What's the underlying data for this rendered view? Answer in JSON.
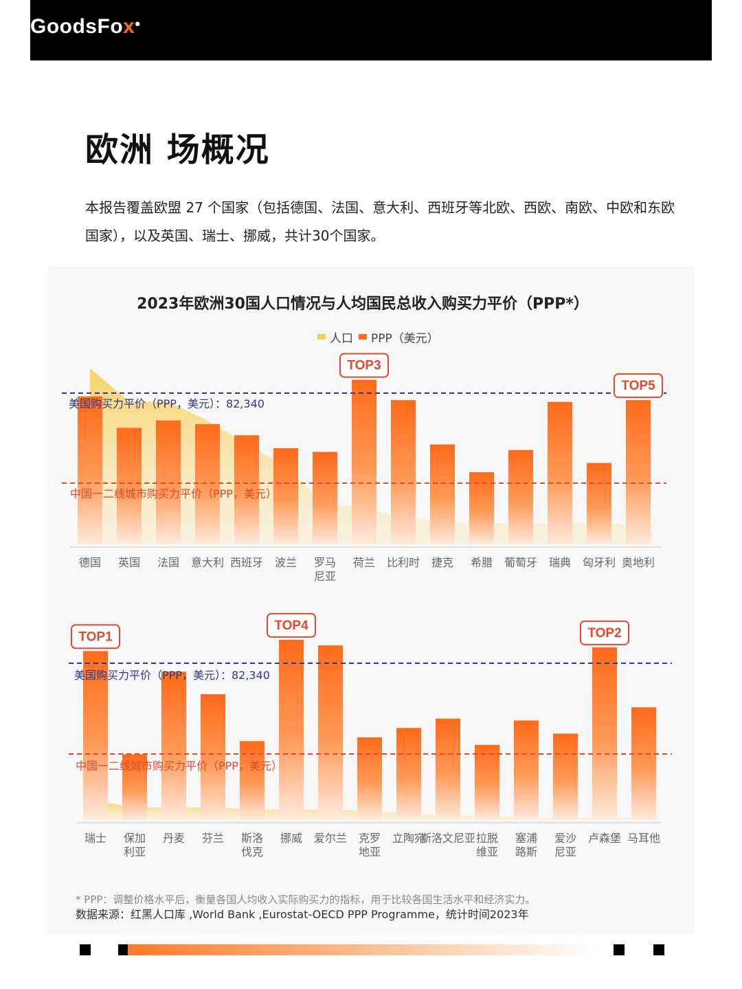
{
  "header": {
    "logo_main": "GoodsFo",
    "logo_x": "x",
    "logo_mark": "•"
  },
  "page_title": "欧洲   场概况",
  "intro": "本报告覆盖欧盟 27 个国家（包括德国、法国、意大利、西班牙等北欧、西欧、南欧、中欧和东欧国家），以及英国、瑞士、挪威，共计30个国家。",
  "chart_title": "2023年欧洲30国人口情况与人均国民总收入购买力平价（PPP*）",
  "legend": {
    "population": "人口",
    "ppp": "PPP（美元）"
  },
  "colors": {
    "population": "#f6cf57",
    "ppp_top": "#ff6a1a",
    "ppp_bottom": "#fde6d4",
    "us_line": "#2b3a8c",
    "cn_line": "#e8472c",
    "badge": "#e8472c"
  },
  "reference_lines": {
    "us": {
      "label": "美国购买力平价（PPP，美元）：82,340",
      "value": 82340
    },
    "cn": {
      "label": "中国一二线城市购买力平价（PPP，美元）"
    }
  },
  "chart_data": [
    {
      "type": "bar",
      "categories": [
        "德国",
        "英国",
        "法国",
        "意大利",
        "西班牙",
        "波兰",
        "罗马尼亚",
        "荷兰",
        "比利时",
        "捷克",
        "希腊",
        "葡萄牙",
        "瑞典",
        "匈牙利",
        "奥地利"
      ],
      "series": [
        {
          "name": "PPP（美元）",
          "values": [
            80000,
            63000,
            67000,
            65000,
            59000,
            52000,
            50000,
            89000,
            78000,
            54000,
            39000,
            51000,
            77000,
            44000,
            78000
          ]
        },
        {
          "name": "人口",
          "values": [
            84,
            68,
            68,
            59,
            48,
            37,
            19,
            18,
            12,
            11,
            10,
            10,
            10,
            10,
            9
          ]
        }
      ],
      "badges": [
        {
          "category": "荷兰",
          "label": "TOP3"
        },
        {
          "category": "奥地利",
          "label": "TOP5"
        }
      ]
    },
    {
      "type": "bar",
      "categories": [
        "瑞士",
        "保加利亚",
        "丹麦",
        "芬兰",
        "斯洛伐克",
        "挪威",
        "爱尔兰",
        "克罗地亚",
        "立陶宛",
        "斯洛文尼亚",
        "拉脱维亚",
        "塞浦路斯",
        "爱沙尼亚",
        "卢森堡",
        "马耳他"
      ],
      "series": [
        {
          "name": "PPP（美元）",
          "values": [
            90000,
            35000,
            79000,
            67000,
            42000,
            96000,
            93000,
            44000,
            49000,
            54000,
            40000,
            53000,
            46000,
            92000,
            60000
          ]
        },
        {
          "name": "人口",
          "values": [
            9,
            6,
            6,
            6,
            5,
            5,
            5,
            4,
            3,
            2,
            2,
            1,
            1,
            1,
            1
          ]
        }
      ],
      "badges": [
        {
          "category": "瑞士",
          "label": "TOP1"
        },
        {
          "category": "挪威",
          "label": "TOP4"
        },
        {
          "category": "卢森堡",
          "label": "TOP2"
        }
      ]
    }
  ],
  "footnote": "* PPP：调整价格水平后，衡量各国人均收入实际购买力的指标，用于比较各国生活水平和经济实力。",
  "source": "数据来源：红黑人口库 ,World Bank ,Eurostat-OECD PPP Programme，统计时间2023年"
}
